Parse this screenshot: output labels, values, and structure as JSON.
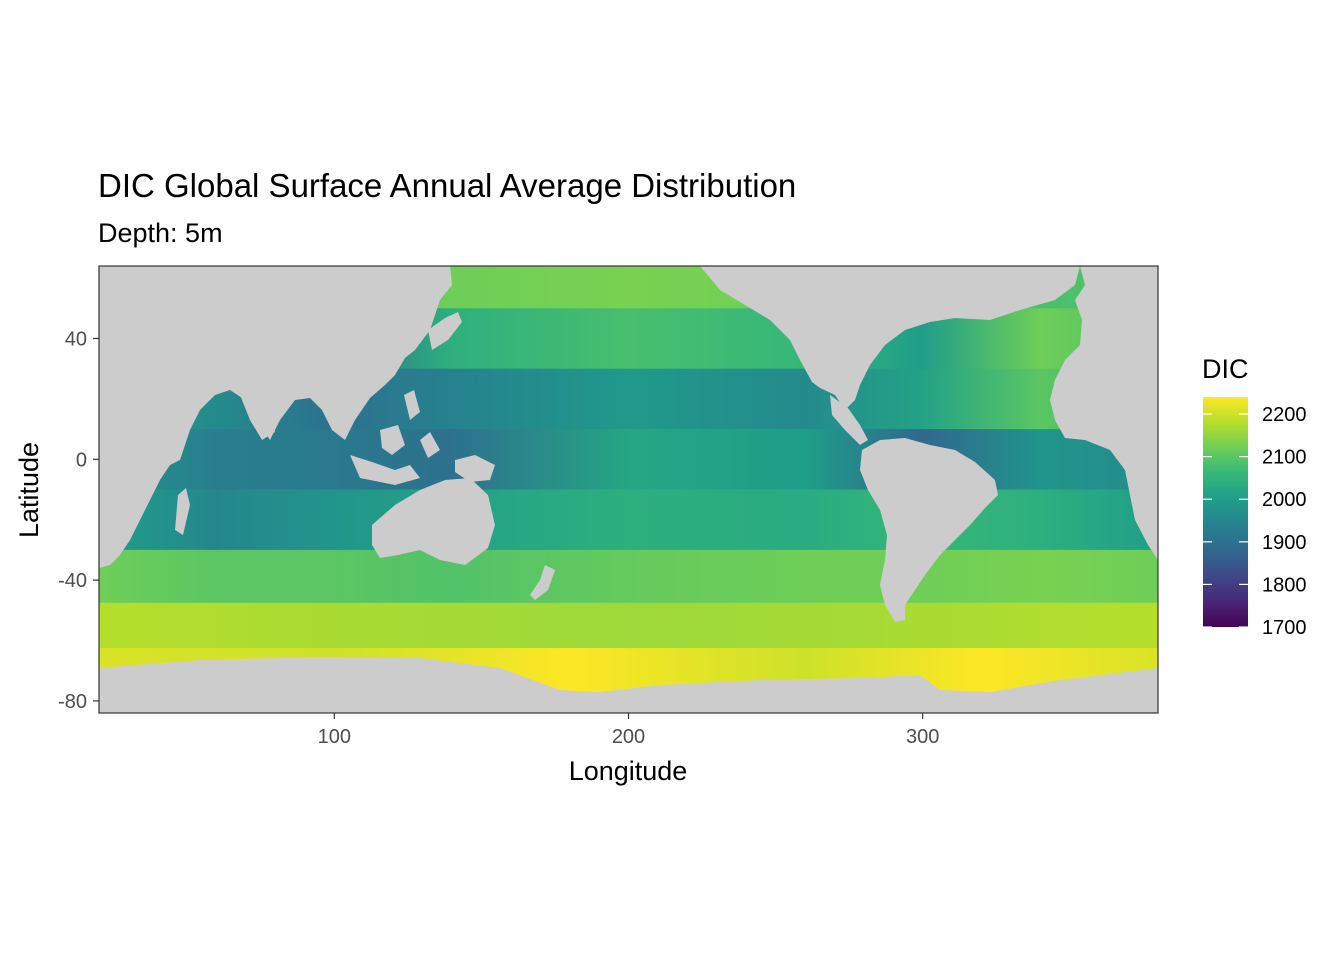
{
  "chart_data": {
    "type": "heatmap",
    "title": "DIC Global Surface Annual Average Distribution",
    "subtitle": "Depth: 5m",
    "xlabel": "Longitude",
    "ylabel": "Latitude",
    "xlim": [
      20,
      380
    ],
    "ylim": [
      -84,
      64
    ],
    "x_ticks": [
      100,
      200,
      300
    ],
    "y_ticks": [
      40,
      0,
      -40,
      -80
    ],
    "grid": false,
    "land_color": "#cccccc",
    "colorbar": {
      "title": "DIC",
      "min": 1700,
      "max": 2240,
      "ticks": [
        2200,
        2100,
        2000,
        1900,
        1800,
        1700
      ],
      "colormap": "viridis",
      "colors": [
        "#440154",
        "#482878",
        "#3e4989",
        "#31688e",
        "#26828e",
        "#1f9e89",
        "#35b779",
        "#6ece58",
        "#b5de2b",
        "#fde725"
      ],
      "legend_position": "right"
    },
    "values": [
      {
        "lat": 60,
        "lon_dic": [
          [
            20,
            2100
          ],
          [
            100,
            2080
          ],
          [
            140,
            2120
          ],
          [
            200,
            2130
          ],
          [
            260,
            2120
          ],
          [
            300,
            2100
          ],
          [
            340,
            2080
          ],
          [
            380,
            2100
          ]
        ]
      },
      {
        "lat": 40,
        "lon_dic": [
          [
            20,
            2060
          ],
          [
            100,
            1900
          ],
          [
            140,
            2040
          ],
          [
            200,
            2080
          ],
          [
            260,
            2060
          ],
          [
            300,
            2000
          ],
          [
            340,
            2120
          ],
          [
            380,
            2080
          ]
        ]
      },
      {
        "lat": 20,
        "lon_dic": [
          [
            20,
            2000
          ],
          [
            60,
            1960
          ],
          [
            100,
            1900
          ],
          [
            140,
            1940
          ],
          [
            200,
            1990
          ],
          [
            260,
            1960
          ],
          [
            300,
            2010
          ],
          [
            340,
            2100
          ],
          [
            380,
            2060
          ]
        ]
      },
      {
        "lat": 0,
        "lon_dic": [
          [
            20,
            1980
          ],
          [
            60,
            1930
          ],
          [
            100,
            1920
          ],
          [
            140,
            1900
          ],
          [
            200,
            2020
          ],
          [
            260,
            2000
          ],
          [
            300,
            1880
          ],
          [
            340,
            1980
          ],
          [
            380,
            1960
          ]
        ]
      },
      {
        "lat": -20,
        "lon_dic": [
          [
            20,
            2000
          ],
          [
            60,
            1950
          ],
          [
            100,
            1980
          ],
          [
            140,
            2010
          ],
          [
            200,
            2040
          ],
          [
            260,
            2030
          ],
          [
            300,
            2060
          ],
          [
            340,
            2040
          ],
          [
            380,
            2000
          ]
        ]
      },
      {
        "lat": -40,
        "lon_dic": [
          [
            20,
            2120
          ],
          [
            60,
            2100
          ],
          [
            100,
            2100
          ],
          [
            140,
            2090
          ],
          [
            200,
            2110
          ],
          [
            260,
            2120
          ],
          [
            300,
            2120
          ],
          [
            340,
            2130
          ],
          [
            380,
            2120
          ]
        ]
      },
      {
        "lat": -55,
        "lon_dic": [
          [
            20,
            2180
          ],
          [
            100,
            2170
          ],
          [
            200,
            2160
          ],
          [
            300,
            2170
          ],
          [
            380,
            2180
          ]
        ]
      },
      {
        "lat": -70,
        "lon_dic": [
          [
            20,
            2210
          ],
          [
            100,
            2200
          ],
          [
            180,
            2240
          ],
          [
            260,
            2200
          ],
          [
            320,
            2240
          ],
          [
            380,
            2210
          ]
        ]
      }
    ]
  }
}
